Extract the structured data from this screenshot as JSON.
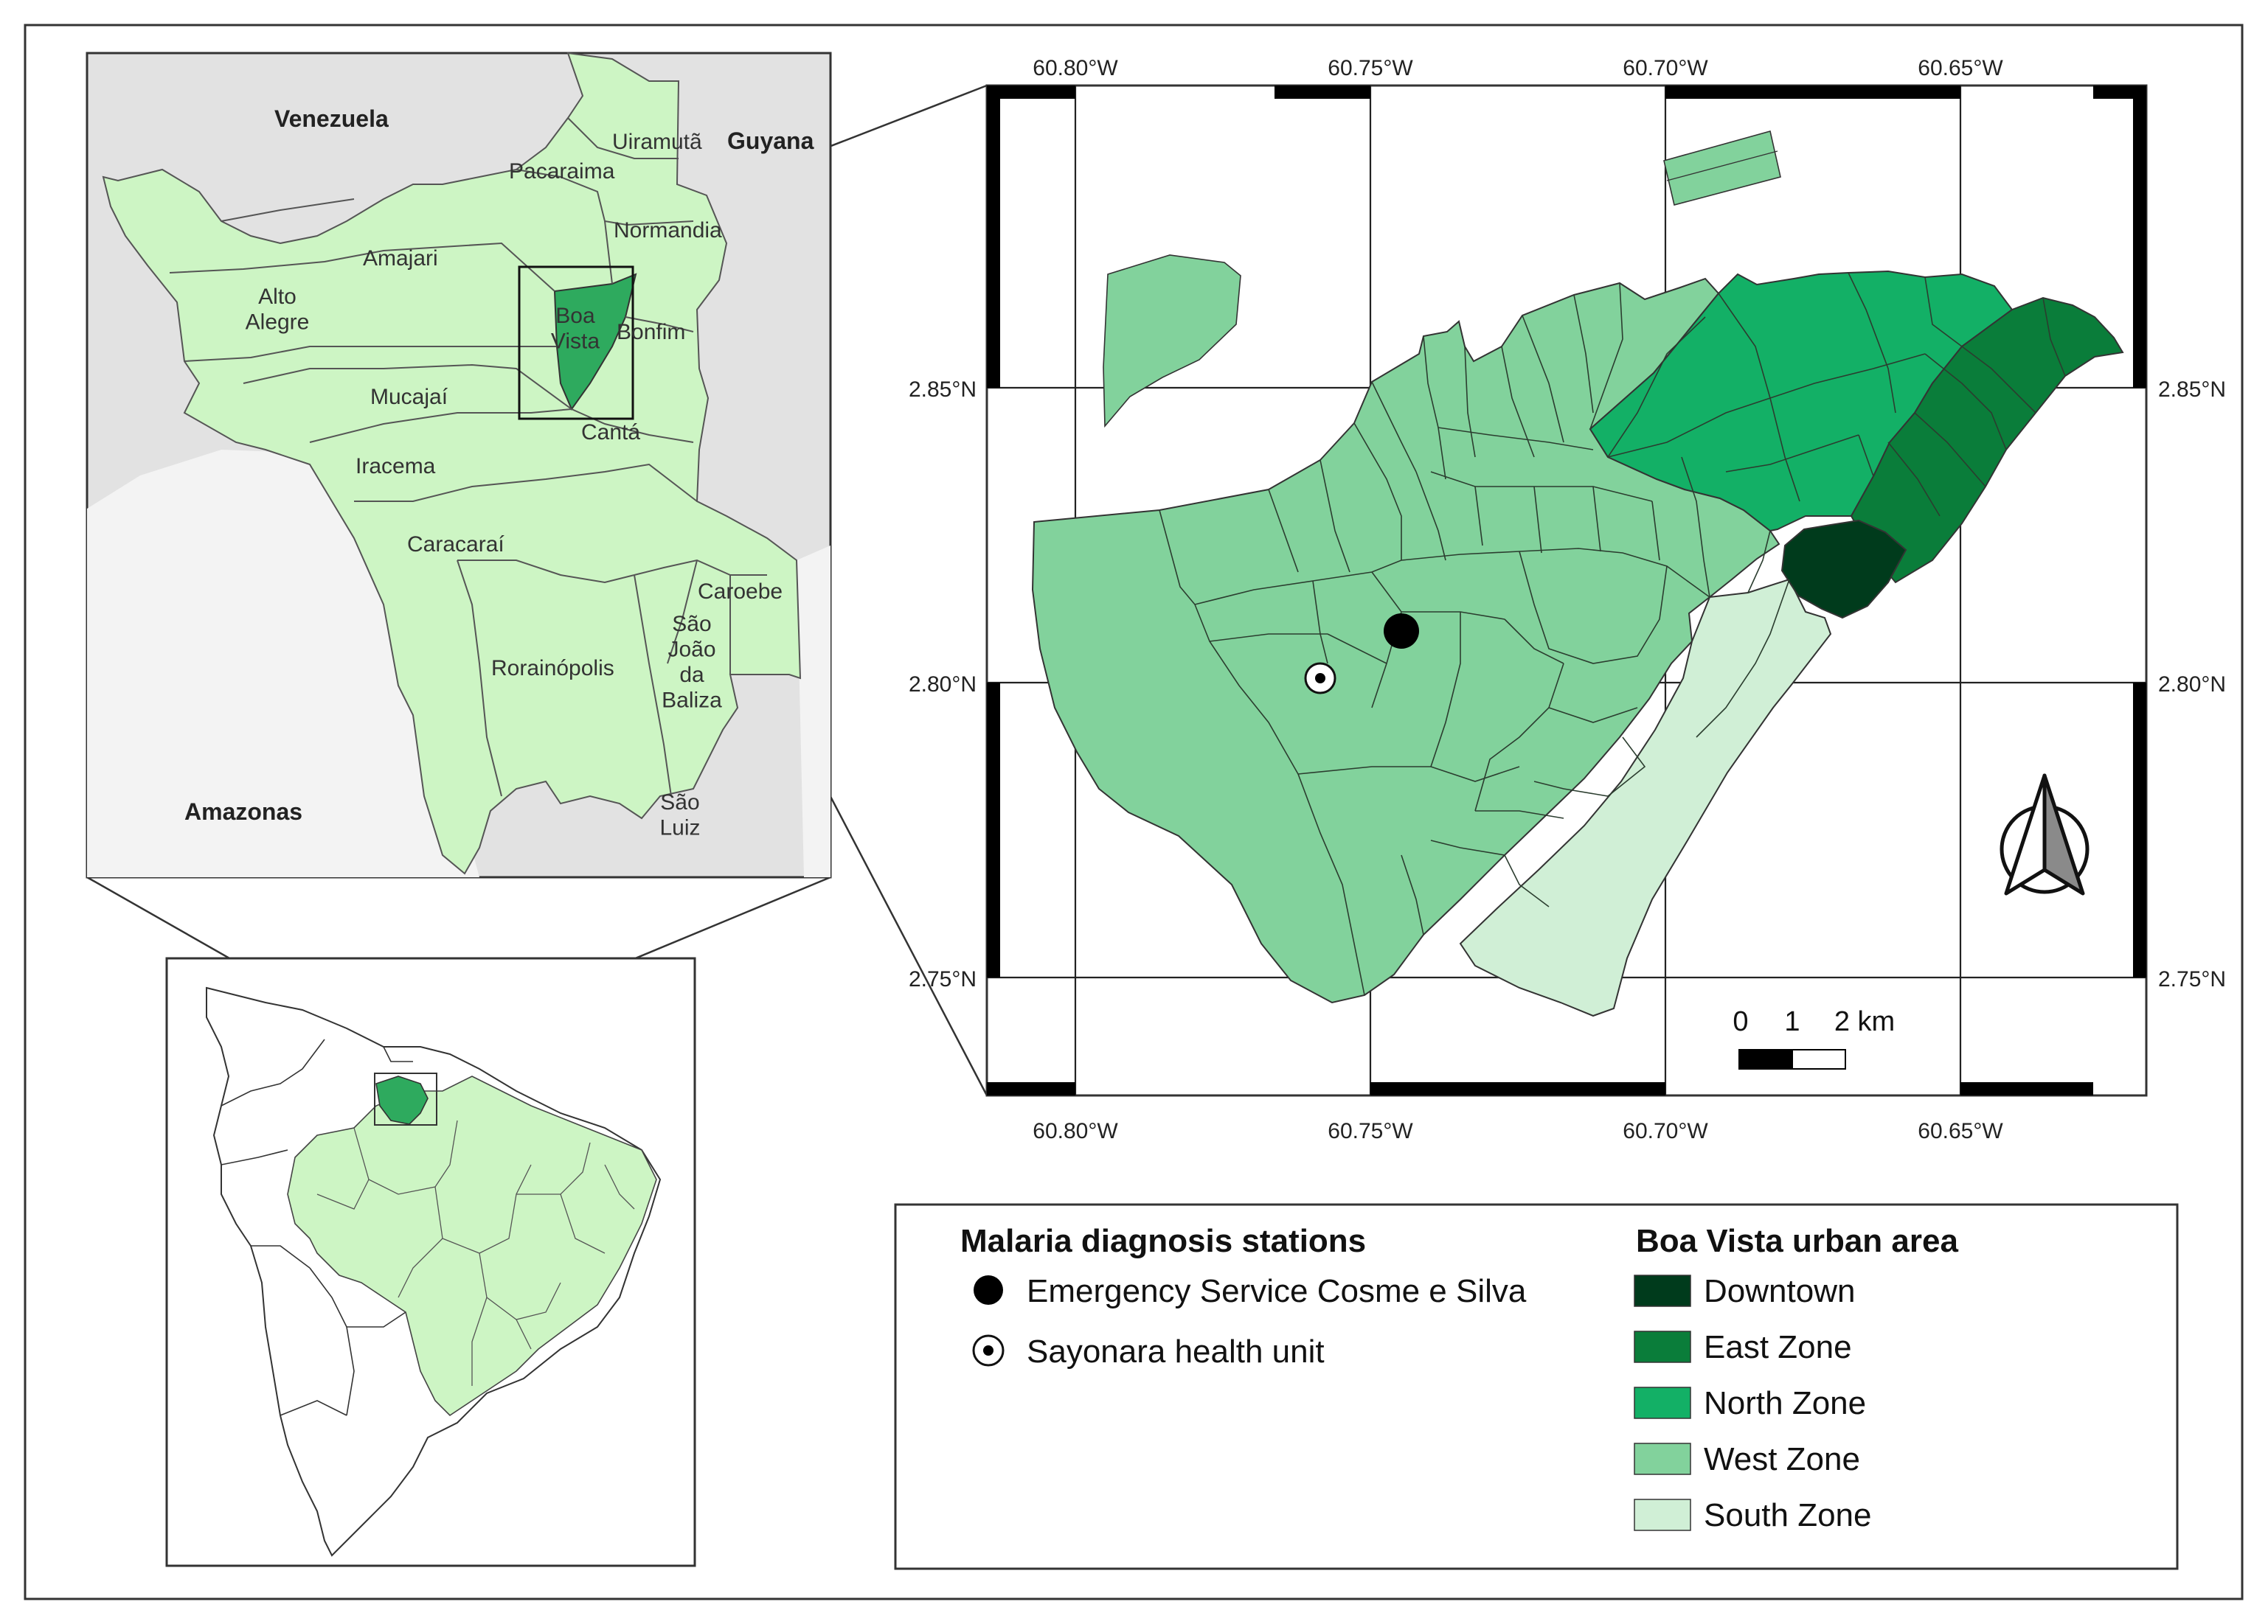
{
  "colors": {
    "downtown": "#003b1c",
    "east_zone": "#0a7d3a",
    "north_zone": "#13b066",
    "west_zone": "#82d29c",
    "south_zone": "#d0efd6",
    "roraima_fill": "#cdf5c4",
    "outside_fill": "#e2e2e2",
    "boa_vista_highlight": "#2eaa5e",
    "boundary": "#222222"
  },
  "roraima_map": {
    "countries": {
      "venezuela": "Venezuela",
      "guyana": "Guyana",
      "amazonas": "Amazonas"
    },
    "municipalities": {
      "uiramuta": "Uiramutã",
      "pacaraima": "Pacaraima",
      "normandia": "Normandia",
      "amajari": "Amajari",
      "alto_alegre": "Alto\nAlegre",
      "boa_vista": "Boa\nVista",
      "bonfim": "Bonfim",
      "mucajai": "Mucajaí",
      "canta": "Cantá",
      "iracema": "Iracema",
      "caracarai": "Caracaraí",
      "caroebe": "Caroebe",
      "sao_joao_da_baliza": "São\nJoão\nda\nBaliza",
      "rorainopolis": "Rorainópolis",
      "sao_luiz": "São\nLuiz"
    }
  },
  "city_map": {
    "lon_ticks": [
      "60.80°W",
      "60.75°W",
      "60.70°W",
      "60.65°W"
    ],
    "lat_ticks": [
      "2.85°N",
      "2.80°N",
      "2.75°N"
    ],
    "scale_bar": {
      "labels": [
        "0",
        "1",
        "2 km"
      ]
    },
    "stations": [
      {
        "name": "Emergency Service Cosme e Silva",
        "lon": -60.745,
        "lat": 2.809,
        "symbol": "filled-circle"
      },
      {
        "name": "Sayonara health unit",
        "lon": -60.759,
        "lat": 2.801,
        "symbol": "dot-in-circle"
      }
    ]
  },
  "legend": {
    "stations_title": "Malaria diagnosis stations",
    "stations": [
      {
        "label": "Emergency Service Cosme e Silva",
        "symbol": "filled-circle"
      },
      {
        "label": "Sayonara health unit",
        "symbol": "dot-in-circle"
      }
    ],
    "zones_title": "Boa Vista urban area",
    "zones": [
      {
        "label": "Downtown",
        "color": "#003b1c"
      },
      {
        "label": "East Zone",
        "color": "#0a7d3a"
      },
      {
        "label": "North Zone",
        "color": "#13b066"
      },
      {
        "label": "West Zone",
        "color": "#82d29c"
      },
      {
        "label": "South Zone",
        "color": "#d0efd6"
      }
    ]
  }
}
